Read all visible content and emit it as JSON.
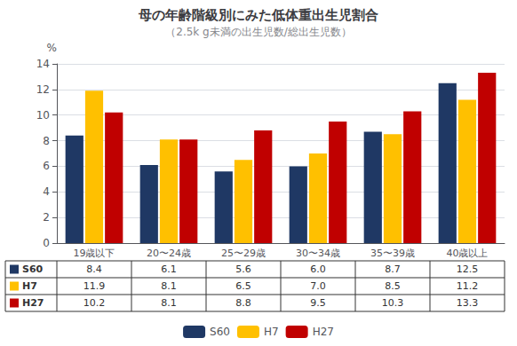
{
  "chart_data": {
    "type": "bar",
    "title": "母の年齢階級別にみた低体重出生児割合",
    "subtitle": "（2.5k g未満の出生児数/総出生児数）",
    "ylabel": "%",
    "categories": [
      "19歳以下",
      "20〜24歳",
      "25〜29歳",
      "30〜34歳",
      "35〜39歳",
      "40歳以上"
    ],
    "series": [
      {
        "name": "S60",
        "color": "#1f3864",
        "values": [
          8.4,
          6.1,
          5.6,
          6.0,
          8.7,
          12.5
        ],
        "value_labels": [
          "8.4",
          "6.1",
          "5.6",
          "6.0",
          "8.7",
          "12.5"
        ]
      },
      {
        "name": "H7",
        "color": "#ffc000",
        "values": [
          11.9,
          8.1,
          6.5,
          7.0,
          8.5,
          11.2
        ],
        "value_labels": [
          "11.9",
          "8.1",
          "6.5",
          "7.0",
          "8.5",
          "11.2"
        ]
      },
      {
        "name": "H27",
        "color": "#c00000",
        "values": [
          10.2,
          8.1,
          8.8,
          9.5,
          10.3,
          13.3
        ],
        "value_labels": [
          "10.2",
          "8.1",
          "8.8",
          "9.5",
          "10.3",
          "13.3"
        ]
      }
    ],
    "ylim": [
      0,
      14
    ],
    "yticks": [
      0,
      2,
      4,
      6,
      8,
      10,
      12,
      14
    ],
    "grid": true,
    "legend": "bottom"
  }
}
